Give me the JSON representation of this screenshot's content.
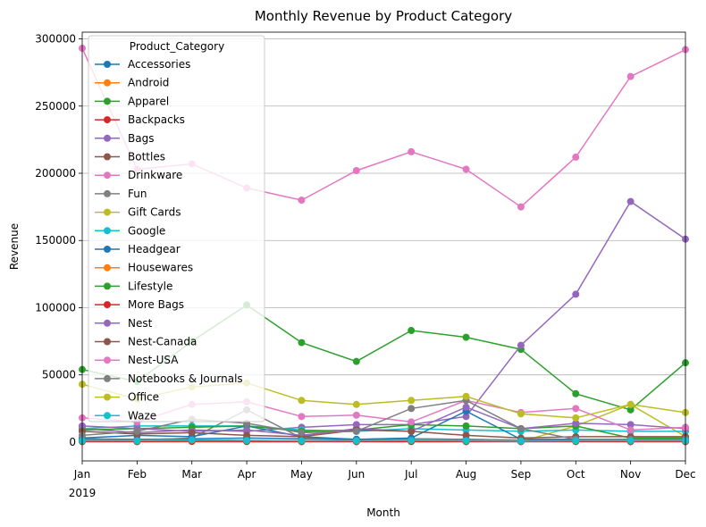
{
  "chart_data": {
    "type": "line",
    "title": "Monthly Revenue by Product Category",
    "xlabel": "Month",
    "ylabel": "Revenue",
    "x": [
      "Jan",
      "Feb",
      "Mar",
      "Apr",
      "May",
      "Jun",
      "Jul",
      "Aug",
      "Sep",
      "Oct",
      "Nov",
      "Dec"
    ],
    "x_year_label": "2019",
    "ylim": [
      -14000,
      305000
    ],
    "yticks": [
      0,
      50000,
      100000,
      150000,
      200000,
      250000,
      300000
    ],
    "grid": "y",
    "legend": {
      "title": "Product_Category",
      "placement": "upper-left"
    },
    "series": [
      {
        "name": "Accessories",
        "color": "#1f77b4",
        "values": [
          2500,
          2000,
          2500,
          3000,
          2500,
          2000,
          2500,
          2000,
          1500,
          1800,
          1500,
          1500
        ]
      },
      {
        "name": "Android",
        "color": "#ff7f0e",
        "values": [
          800,
          700,
          900,
          700,
          800,
          600,
          700,
          600,
          500,
          700,
          600,
          600
        ]
      },
      {
        "name": "Apparel",
        "color": "#2ca02c",
        "values": [
          54000,
          45000,
          75000,
          102000,
          74000,
          60000,
          83000,
          78000,
          69000,
          36000,
          24000,
          59000
        ]
      },
      {
        "name": "Backpacks",
        "color": "#d62728",
        "values": [
          1200,
          1000,
          1500,
          1200,
          1000,
          1000,
          1300,
          1200,
          1000,
          1200,
          1000,
          1000
        ]
      },
      {
        "name": "Bags",
        "color": "#9467bd",
        "values": [
          10000,
          7000,
          9000,
          8000,
          11000,
          13000,
          13000,
          19000,
          72000,
          110000,
          179000,
          151000
        ]
      },
      {
        "name": "Bottles",
        "color": "#8c564b",
        "values": [
          1000,
          1000,
          1500,
          1200,
          1000,
          1000,
          1200,
          1000,
          800,
          1000,
          1000,
          1000
        ]
      },
      {
        "name": "Drinkware",
        "color": "#e377c2",
        "values": [
          293000,
          203000,
          207000,
          189000,
          180000,
          202000,
          216000,
          203000,
          175000,
          212000,
          272000,
          292000
        ]
      },
      {
        "name": "Fun",
        "color": "#7f7f7f",
        "values": [
          2000,
          1500,
          3000,
          24000,
          3000,
          2000,
          2500,
          2000,
          1500,
          2000,
          1500,
          1500
        ]
      },
      {
        "name": "Gift Cards",
        "color": "#bcbd22",
        "values": [
          500,
          500,
          700,
          500,
          500,
          400,
          500,
          500,
          400,
          12000,
          28000,
          4000
        ]
      },
      {
        "name": "Google",
        "color": "#17becf",
        "values": [
          10000,
          12000,
          12000,
          12000,
          9000,
          8000,
          10000,
          9000,
          8000,
          9000,
          8000,
          8000
        ]
      },
      {
        "name": "Headgear",
        "color": "#1f77b4",
        "values": [
          3000,
          5000,
          4000,
          12000,
          4000,
          2000,
          3000,
          23000,
          2000,
          2000,
          2000,
          2000
        ]
      },
      {
        "name": "Housewares",
        "color": "#ff7f0e",
        "values": [
          300,
          300,
          400,
          300,
          300,
          300,
          300,
          300,
          300,
          300,
          300,
          300
        ]
      },
      {
        "name": "Lifestyle",
        "color": "#2ca02c",
        "values": [
          9000,
          10000,
          11000,
          12000,
          8000,
          9000,
          13000,
          12000,
          10000,
          12000,
          3000,
          3000
        ]
      },
      {
        "name": "More Bags",
        "color": "#d62728",
        "values": [
          500,
          400,
          600,
          500,
          400,
          400,
          500,
          400,
          400,
          500,
          400,
          400
        ]
      },
      {
        "name": "Nest",
        "color": "#9467bd",
        "values": [
          12000,
          10000,
          8000,
          9000,
          5000,
          10000,
          8000,
          26000,
          10000,
          14000,
          13000,
          10000
        ]
      },
      {
        "name": "Nest-Canada",
        "color": "#8c564b",
        "values": [
          8000,
          6000,
          7000,
          5000,
          4000,
          9000,
          8000,
          5000,
          3000,
          4000,
          4000,
          4000
        ]
      },
      {
        "name": "Nest-USA",
        "color": "#e377c2",
        "values": [
          18000,
          15000,
          28000,
          30000,
          19000,
          20000,
          15000,
          31000,
          22000,
          25000,
          9000,
          11000
        ]
      },
      {
        "name": "Notebooks & Journals",
        "color": "#7f7f7f",
        "values": [
          5000,
          8000,
          17000,
          14000,
          7000,
          8000,
          25000,
          31000,
          10000,
          2000,
          2000,
          2000
        ]
      },
      {
        "name": "Office",
        "color": "#bcbd22",
        "values": [
          43000,
          32000,
          41000,
          44000,
          31000,
          28000,
          31000,
          34000,
          21000,
          18000,
          28000,
          22000
        ]
      },
      {
        "name": "Waze",
        "color": "#17becf",
        "values": [
          1000,
          1000,
          1500,
          1200,
          1000,
          1000,
          1200,
          1000,
          800,
          1000,
          1000,
          1000
        ]
      }
    ]
  }
}
